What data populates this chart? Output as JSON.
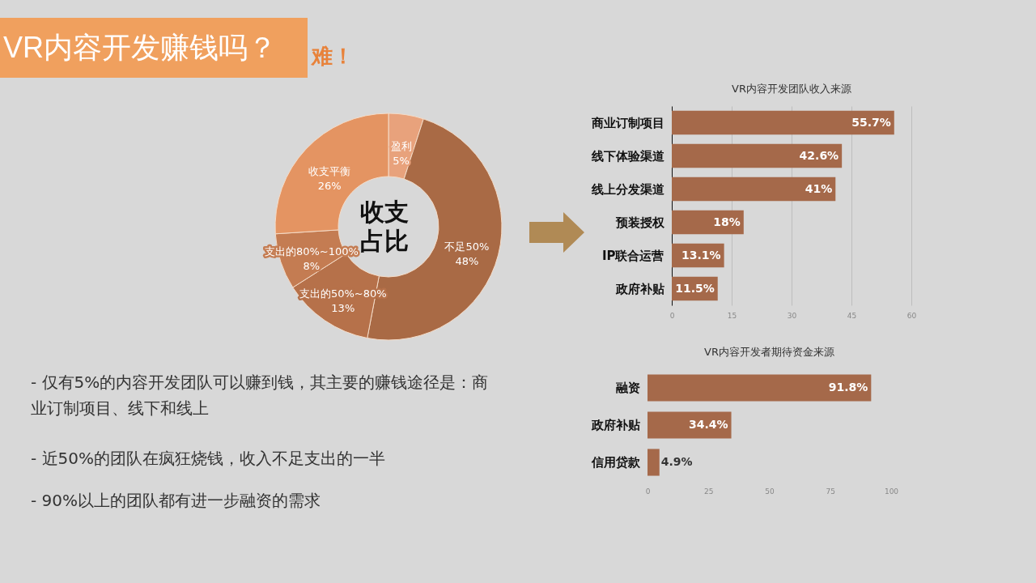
{
  "chart_data": [
    {
      "type": "donut",
      "title": "VR内容开发赚钱吗？",
      "subtitle": "难！",
      "categories": [
        "盈利",
        "不足50%",
        "支出的50%~80%",
        "支出的80%~100%",
        "收支平衡"
      ],
      "values": [
        5,
        48,
        13,
        8,
        26
      ],
      "colors": [
        "#e8a27c",
        "#a96a45",
        "#b6714a",
        "#c47c52",
        "#e49462"
      ],
      "value_labels": [
        "5%",
        "48%",
        "13%",
        "8%",
        "26%"
      ],
      "annotations": [
        "收支占比",
        "- 仅有5%的内容开发团队可以赚到钱，其主要的赚钱途径是：商业订制项目、线下和线上",
        "- 近50%的团队在疯狂烧钱，收入不足支出的一半",
        "- 90%以上的团队都有进一步融资的需求"
      ]
    },
    {
      "type": "bar",
      "orientation": "horizontal",
      "title": "VR内容开发团队收入来源",
      "categories": [
        "商业订制项目",
        "线下体验渠道",
        "线上分发渠道",
        "预装授权",
        "IP联合运营",
        "政府补贴"
      ],
      "values": [
        55.7,
        42.6,
        41,
        18,
        13.1,
        11.5
      ],
      "color": "#a5694a",
      "value_labels": [
        "55.7%",
        "42.6%",
        "41%",
        "18%",
        "13.1%",
        "11.5%"
      ],
      "xlim": [
        0,
        60
      ],
      "xticks": [
        0,
        15,
        30,
        45,
        60
      ],
      "grid": "x"
    },
    {
      "type": "bar",
      "orientation": "horizontal",
      "title": "VR内容开发者期待资金来源",
      "categories": [
        "融资",
        "政府补贴",
        "信用贷款"
      ],
      "values": [
        91.8,
        34.4,
        4.9
      ],
      "color": "#a5694a",
      "value_labels": [
        "91.8%",
        "34.4%",
        "4.9%"
      ],
      "xlim": [
        0,
        100
      ],
      "xticks": [
        0,
        25,
        50,
        75,
        100
      ]
    }
  ]
}
